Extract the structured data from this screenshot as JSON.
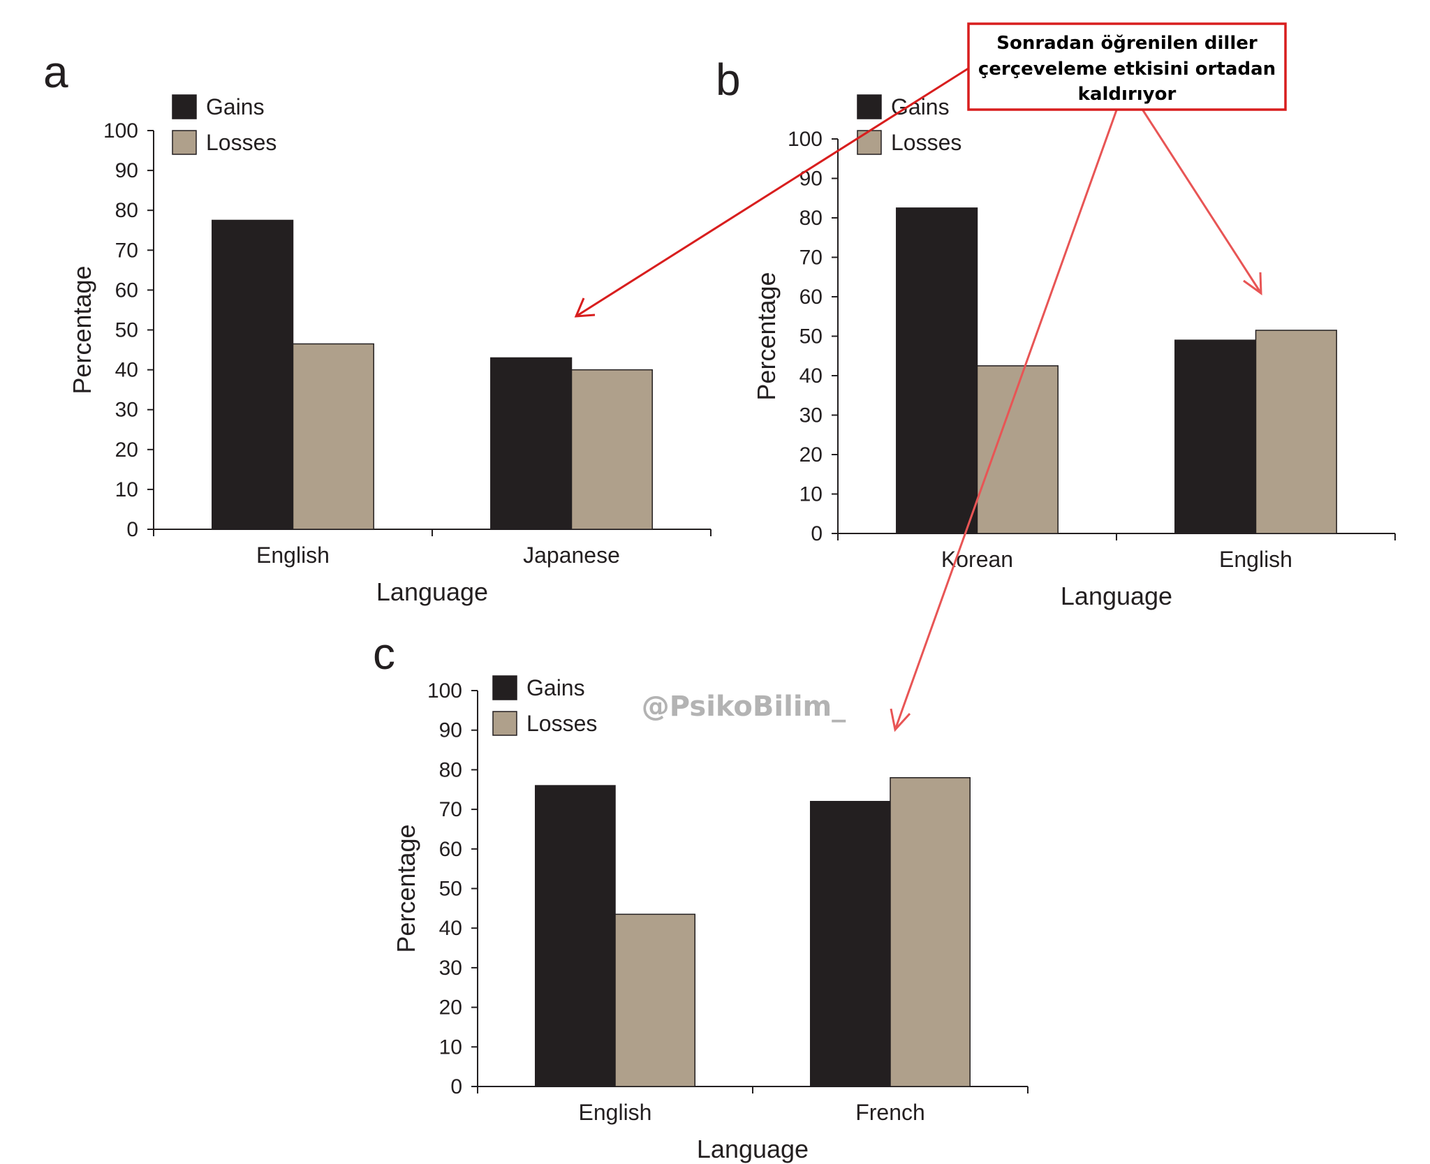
{
  "colors": {
    "gains": "#231f20",
    "losses": "#afa08b",
    "axis": "#231f20",
    "arrow_dark": "#d81e1e",
    "arrow_light": "#e85555",
    "note_border": "#d81e1e",
    "watermark": "#b3b3b3"
  },
  "annotation": {
    "lines": [
      "Sonradan öğrenilen diller",
      "çerçeveleme etkisini ortadan",
      "kaldırıyor"
    ]
  },
  "watermark": "@PsikoBilim_",
  "chart_data": [
    {
      "panel": "a",
      "type": "bar",
      "xlabel": "Language",
      "ylabel": "Percentage",
      "ylim": [
        0,
        100
      ],
      "yticks": [
        0,
        10,
        20,
        30,
        40,
        50,
        60,
        70,
        80,
        90,
        100
      ],
      "categories": [
        "English",
        "Japanese"
      ],
      "series": [
        {
          "name": "Gains",
          "values": [
            77.5,
            43
          ]
        },
        {
          "name": "Losses",
          "values": [
            46.5,
            40
          ]
        }
      ],
      "legend": "top-left"
    },
    {
      "panel": "b",
      "type": "bar",
      "xlabel": "Language",
      "ylabel": "Percentage",
      "ylim": [
        0,
        100
      ],
      "yticks": [
        0,
        10,
        20,
        30,
        40,
        50,
        60,
        70,
        80,
        90,
        100
      ],
      "categories": [
        "Korean",
        "English"
      ],
      "series": [
        {
          "name": "Gains",
          "values": [
            82.5,
            49
          ]
        },
        {
          "name": "Losses",
          "values": [
            42.5,
            51.5
          ]
        }
      ],
      "legend": "top-left"
    },
    {
      "panel": "c",
      "type": "bar",
      "xlabel": "Language",
      "ylabel": "Percentage",
      "ylim": [
        0,
        100
      ],
      "yticks": [
        0,
        10,
        20,
        30,
        40,
        50,
        60,
        70,
        80,
        90,
        100
      ],
      "categories": [
        "English",
        "French"
      ],
      "series": [
        {
          "name": "Gains",
          "values": [
            76,
            72
          ]
        },
        {
          "name": "Losses",
          "values": [
            43.5,
            78
          ]
        }
      ],
      "legend": "top-left"
    }
  ]
}
